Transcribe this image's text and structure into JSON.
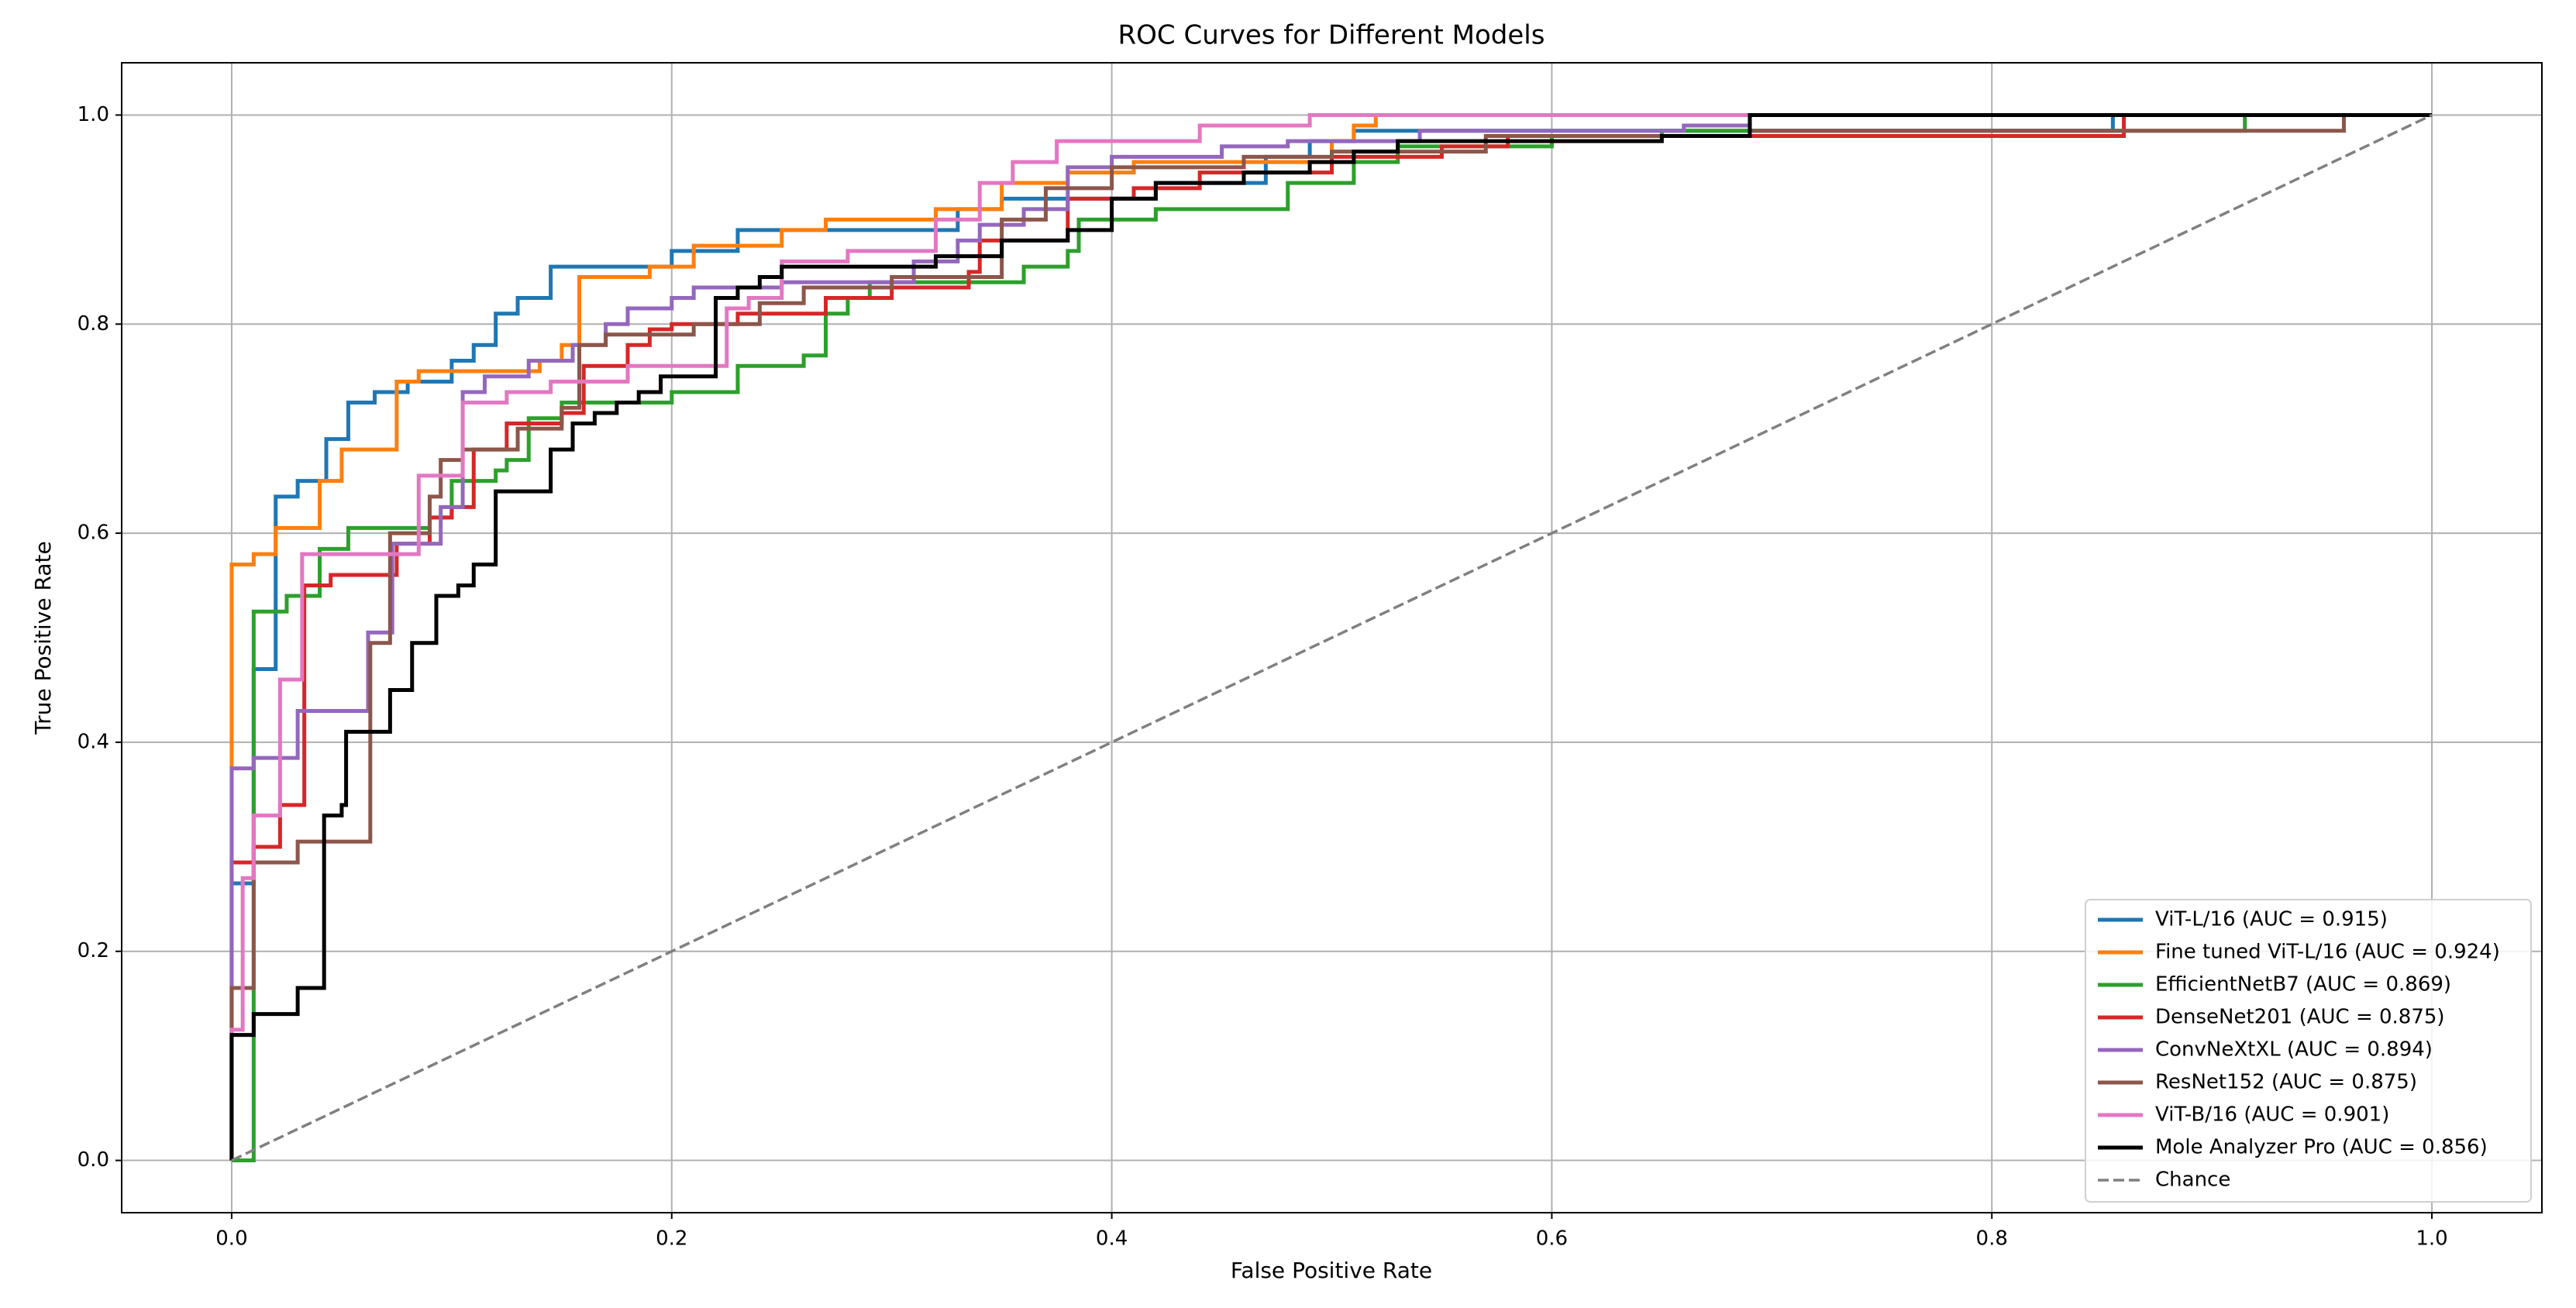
{
  "chart_data": {
    "type": "line",
    "title": "ROC Curves for Different Models",
    "xlabel": "False Positive Rate",
    "ylabel": "True Positive Rate",
    "xlim": [
      -0.05,
      1.05
    ],
    "ylim": [
      -0.05,
      1.05
    ],
    "xticks": [
      {
        "value": 0,
        "label": "0.0"
      },
      0.2,
      0.4,
      0.6,
      0.8,
      {
        "value": 1,
        "label": "1.0"
      }
    ],
    "yticks": [
      {
        "value": 0,
        "label": "0.0"
      },
      0.2,
      0.4,
      0.6,
      0.8,
      {
        "value": 1,
        "label": "1.0"
      }
    ],
    "grid": true,
    "legend": "lower right",
    "series": [
      {
        "name": "ViT-L/16 (AUC = 0.915)",
        "color": "#1f77b4",
        "x": [
          0,
          0,
          0.01,
          0.01,
          0.02,
          0.02,
          0.03,
          0.03,
          0.043,
          0.043,
          0.053,
          0.053,
          0.065,
          0.065,
          0.08,
          0.08,
          0.1,
          0.1,
          0.11,
          0.11,
          0.12,
          0.12,
          0.13,
          0.13,
          0.145,
          0.145,
          0.2,
          0.2,
          0.23,
          0.23,
          0.33,
          0.33,
          0.35,
          0.35,
          0.42,
          0.42,
          0.47,
          0.47,
          0.49,
          0.49,
          0.51,
          0.51,
          0.855,
          0.855,
          1
        ],
        "values": [
          0,
          0.265,
          0.265,
          0.47,
          0.47,
          0.635,
          0.635,
          0.65,
          0.65,
          0.69,
          0.69,
          0.725,
          0.725,
          0.735,
          0.735,
          0.745,
          0.745,
          0.765,
          0.765,
          0.78,
          0.78,
          0.81,
          0.81,
          0.825,
          0.825,
          0.855,
          0.855,
          0.87,
          0.87,
          0.89,
          0.89,
          0.91,
          0.91,
          0.92,
          0.92,
          0.935,
          0.935,
          0.96,
          0.96,
          0.975,
          0.975,
          0.985,
          0.985,
          1,
          1
        ]
      },
      {
        "name": "Fine tuned ViT-L/16 (AUC = 0.924)",
        "color": "#ff7f0e",
        "x": [
          0,
          0,
          0.01,
          0.01,
          0.02,
          0.02,
          0.04,
          0.04,
          0.05,
          0.05,
          0.075,
          0.075,
          0.085,
          0.085,
          0.14,
          0.14,
          0.15,
          0.15,
          0.158,
          0.158,
          0.19,
          0.19,
          0.21,
          0.21,
          0.25,
          0.25,
          0.27,
          0.27,
          0.32,
          0.32,
          0.35,
          0.35,
          0.38,
          0.38,
          0.41,
          0.41,
          0.5,
          0.5,
          0.51,
          0.51,
          0.52,
          0.52,
          1
        ],
        "values": [
          0,
          0.57,
          0.57,
          0.58,
          0.58,
          0.605,
          0.605,
          0.65,
          0.65,
          0.68,
          0.68,
          0.745,
          0.745,
          0.755,
          0.755,
          0.765,
          0.765,
          0.78,
          0.78,
          0.845,
          0.845,
          0.855,
          0.855,
          0.875,
          0.875,
          0.89,
          0.89,
          0.9,
          0.9,
          0.91,
          0.91,
          0.935,
          0.935,
          0.945,
          0.945,
          0.955,
          0.955,
          0.975,
          0.975,
          0.99,
          0.99,
          1,
          1
        ]
      },
      {
        "name": "EfficientNetB7 (AUC = 0.869)",
        "color": "#2ca02c",
        "x": [
          0,
          0.01,
          0.01,
          0.025,
          0.025,
          0.04,
          0.04,
          0.053,
          0.053,
          0.09,
          0.09,
          0.1,
          0.1,
          0.12,
          0.12,
          0.125,
          0.125,
          0.135,
          0.135,
          0.15,
          0.15,
          0.2,
          0.2,
          0.23,
          0.23,
          0.26,
          0.26,
          0.27,
          0.27,
          0.28,
          0.28,
          0.29,
          0.29,
          0.36,
          0.36,
          0.38,
          0.38,
          0.385,
          0.385,
          0.42,
          0.42,
          0.48,
          0.48,
          0.51,
          0.51,
          0.53,
          0.53,
          0.6,
          0.6,
          0.65,
          0.65,
          0.915,
          0.915,
          1
        ],
        "values": [
          0,
          0,
          0.525,
          0.525,
          0.54,
          0.54,
          0.585,
          0.585,
          0.605,
          0.605,
          0.615,
          0.615,
          0.65,
          0.65,
          0.66,
          0.66,
          0.67,
          0.67,
          0.71,
          0.71,
          0.725,
          0.725,
          0.735,
          0.735,
          0.76,
          0.76,
          0.77,
          0.77,
          0.81,
          0.81,
          0.825,
          0.825,
          0.84,
          0.84,
          0.855,
          0.855,
          0.87,
          0.87,
          0.9,
          0.9,
          0.91,
          0.91,
          0.935,
          0.935,
          0.955,
          0.955,
          0.97,
          0.97,
          0.98,
          0.98,
          0.985,
          0.985,
          1,
          1
        ]
      },
      {
        "name": "DenseNet201 (AUC = 0.875)",
        "color": "#d62728",
        "x": [
          0,
          0,
          0.01,
          0.01,
          0.022,
          0.022,
          0.033,
          0.033,
          0.045,
          0.045,
          0.075,
          0.075,
          0.09,
          0.09,
          0.1,
          0.1,
          0.11,
          0.11,
          0.125,
          0.125,
          0.15,
          0.15,
          0.16,
          0.16,
          0.18,
          0.18,
          0.19,
          0.19,
          0.2,
          0.2,
          0.23,
          0.23,
          0.27,
          0.27,
          0.3,
          0.3,
          0.335,
          0.335,
          0.34,
          0.34,
          0.38,
          0.38,
          0.41,
          0.41,
          0.44,
          0.44,
          0.5,
          0.5,
          0.55,
          0.55,
          0.58,
          0.58,
          0.86,
          0.86,
          1
        ],
        "values": [
          0,
          0.285,
          0.285,
          0.3,
          0.3,
          0.34,
          0.34,
          0.55,
          0.55,
          0.56,
          0.56,
          0.59,
          0.59,
          0.615,
          0.615,
          0.625,
          0.625,
          0.68,
          0.68,
          0.705,
          0.705,
          0.715,
          0.715,
          0.76,
          0.76,
          0.78,
          0.78,
          0.795,
          0.795,
          0.8,
          0.8,
          0.81,
          0.81,
          0.825,
          0.825,
          0.835,
          0.835,
          0.85,
          0.85,
          0.88,
          0.88,
          0.92,
          0.92,
          0.93,
          0.93,
          0.945,
          0.945,
          0.96,
          0.96,
          0.97,
          0.97,
          0.98,
          0.98,
          1,
          1
        ]
      },
      {
        "name": "ConvNeXtXL (AUC = 0.894)",
        "color": "#9467bd",
        "x": [
          0,
          0,
          0.01,
          0.01,
          0.03,
          0.03,
          0.062,
          0.062,
          0.073,
          0.073,
          0.095,
          0.095,
          0.105,
          0.105,
          0.115,
          0.115,
          0.135,
          0.135,
          0.155,
          0.155,
          0.17,
          0.17,
          0.18,
          0.18,
          0.2,
          0.2,
          0.21,
          0.21,
          0.25,
          0.25,
          0.31,
          0.31,
          0.33,
          0.33,
          0.34,
          0.34,
          0.36,
          0.36,
          0.38,
          0.38,
          0.4,
          0.4,
          0.45,
          0.45,
          0.48,
          0.48,
          0.54,
          0.54,
          0.66,
          0.66,
          0.69,
          0.69,
          1
        ],
        "values": [
          0,
          0.375,
          0.375,
          0.385,
          0.385,
          0.43,
          0.43,
          0.505,
          0.505,
          0.59,
          0.59,
          0.625,
          0.625,
          0.735,
          0.735,
          0.75,
          0.75,
          0.765,
          0.765,
          0.78,
          0.78,
          0.8,
          0.8,
          0.815,
          0.815,
          0.825,
          0.825,
          0.835,
          0.835,
          0.84,
          0.84,
          0.86,
          0.86,
          0.88,
          0.88,
          0.895,
          0.895,
          0.91,
          0.91,
          0.95,
          0.95,
          0.96,
          0.96,
          0.97,
          0.97,
          0.975,
          0.975,
          0.985,
          0.985,
          0.99,
          0.99,
          1,
          1
        ]
      },
      {
        "name": "ResNet152 (AUC = 0.875)",
        "color": "#8c564b",
        "x": [
          0,
          0,
          0.01,
          0.01,
          0.03,
          0.03,
          0.063,
          0.063,
          0.072,
          0.072,
          0.09,
          0.09,
          0.095,
          0.095,
          0.105,
          0.105,
          0.13,
          0.13,
          0.15,
          0.15,
          0.158,
          0.158,
          0.17,
          0.17,
          0.21,
          0.21,
          0.24,
          0.24,
          0.26,
          0.26,
          0.3,
          0.3,
          0.35,
          0.35,
          0.37,
          0.37,
          0.4,
          0.4,
          0.46,
          0.46,
          0.5,
          0.5,
          0.57,
          0.57,
          0.69,
          0.69,
          0.96,
          0.96,
          1
        ],
        "values": [
          0,
          0.165,
          0.165,
          0.285,
          0.285,
          0.305,
          0.305,
          0.495,
          0.495,
          0.6,
          0.6,
          0.635,
          0.635,
          0.67,
          0.67,
          0.68,
          0.68,
          0.7,
          0.7,
          0.72,
          0.72,
          0.78,
          0.78,
          0.79,
          0.79,
          0.8,
          0.8,
          0.82,
          0.82,
          0.835,
          0.835,
          0.845,
          0.845,
          0.9,
          0.9,
          0.93,
          0.93,
          0.95,
          0.95,
          0.96,
          0.96,
          0.965,
          0.965,
          0.98,
          0.98,
          0.985,
          0.985,
          1,
          1
        ]
      },
      {
        "name": "ViT-B/16 (AUC = 0.901)",
        "color": "#e377c2",
        "x": [
          0,
          0,
          0.005,
          0.005,
          0.01,
          0.01,
          0.022,
          0.022,
          0.032,
          0.032,
          0.085,
          0.085,
          0.105,
          0.105,
          0.125,
          0.125,
          0.145,
          0.145,
          0.18,
          0.18,
          0.225,
          0.225,
          0.235,
          0.235,
          0.25,
          0.25,
          0.28,
          0.28,
          0.32,
          0.32,
          0.34,
          0.34,
          0.355,
          0.355,
          0.375,
          0.375,
          0.44,
          0.44,
          0.49,
          0.49,
          1
        ],
        "values": [
          0,
          0.125,
          0.125,
          0.27,
          0.27,
          0.33,
          0.33,
          0.46,
          0.46,
          0.58,
          0.58,
          0.655,
          0.655,
          0.725,
          0.725,
          0.735,
          0.735,
          0.745,
          0.745,
          0.76,
          0.76,
          0.815,
          0.815,
          0.825,
          0.825,
          0.86,
          0.86,
          0.87,
          0.87,
          0.9,
          0.9,
          0.935,
          0.935,
          0.955,
          0.955,
          0.975,
          0.975,
          0.99,
          0.99,
          1,
          1
        ]
      },
      {
        "name": "Mole Analyzer Pro (AUC = 0.856)",
        "color": "#000000",
        "x": [
          0,
          0,
          0.01,
          0.01,
          0.03,
          0.03,
          0.042,
          0.042,
          0.05,
          0.05,
          0.052,
          0.052,
          0.072,
          0.072,
          0.082,
          0.082,
          0.093,
          0.093,
          0.103,
          0.103,
          0.11,
          0.11,
          0.12,
          0.12,
          0.145,
          0.145,
          0.155,
          0.155,
          0.165,
          0.165,
          0.175,
          0.175,
          0.185,
          0.185,
          0.195,
          0.195,
          0.22,
          0.22,
          0.23,
          0.23,
          0.24,
          0.24,
          0.25,
          0.25,
          0.32,
          0.32,
          0.35,
          0.35,
          0.38,
          0.38,
          0.4,
          0.4,
          0.42,
          0.42,
          0.46,
          0.46,
          0.49,
          0.49,
          0.51,
          0.51,
          0.53,
          0.53,
          0.65,
          0.65,
          0.69,
          0.69,
          1
        ],
        "values": [
          0,
          0.12,
          0.12,
          0.14,
          0.14,
          0.165,
          0.165,
          0.33,
          0.33,
          0.34,
          0.34,
          0.41,
          0.41,
          0.45,
          0.45,
          0.495,
          0.495,
          0.54,
          0.54,
          0.55,
          0.55,
          0.57,
          0.57,
          0.64,
          0.64,
          0.68,
          0.68,
          0.705,
          0.705,
          0.715,
          0.715,
          0.725,
          0.725,
          0.735,
          0.735,
          0.75,
          0.75,
          0.825,
          0.825,
          0.835,
          0.835,
          0.845,
          0.845,
          0.855,
          0.855,
          0.865,
          0.865,
          0.88,
          0.88,
          0.89,
          0.89,
          0.92,
          0.92,
          0.935,
          0.935,
          0.945,
          0.945,
          0.955,
          0.955,
          0.965,
          0.965,
          0.975,
          0.975,
          0.98,
          0.98,
          1,
          1
        ]
      },
      {
        "name": "Chance",
        "color": "#808080",
        "linestyle": "dashed",
        "x": [
          0,
          1
        ],
        "values": [
          0,
          1
        ]
      }
    ]
  }
}
